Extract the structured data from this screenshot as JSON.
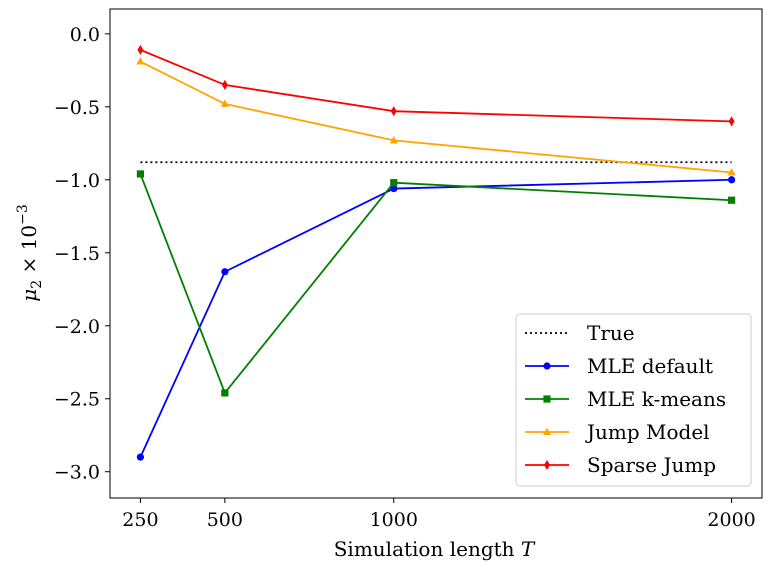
{
  "chart_data": {
    "type": "line",
    "title": "",
    "xlabel": "Simulation length",
    "xlabel_var": "T",
    "ylabel": "μ₂ × 10⁻³",
    "ylabel_parts": {
      "mu": "μ",
      "sub": "2",
      "times": " × 10",
      "exp": "−3"
    },
    "x": [
      250,
      500,
      1000,
      2000
    ],
    "x_ticks": [
      250,
      500,
      1000,
      2000
    ],
    "x_tick_labels": [
      "250",
      "500",
      "1000",
      "2000"
    ],
    "xlim": [
      160,
      2090
    ],
    "ylim": [
      -3.18,
      0.17
    ],
    "y_ticks": [
      0.0,
      -0.5,
      -1.0,
      -1.5,
      -2.0,
      -2.5,
      -3.0
    ],
    "y_tick_labels": [
      "0.0",
      "−0.5",
      "−1.0",
      "−1.5",
      "−2.0",
      "−2.5",
      "−3.0"
    ],
    "grid": false,
    "legend_position": "lower-right",
    "series": [
      {
        "name": "True",
        "values": [
          -0.88,
          -0.88,
          -0.88,
          -0.88
        ],
        "color": "#000000",
        "dash": "dotted",
        "marker": "none"
      },
      {
        "name": "MLE default",
        "values": [
          -2.9,
          -1.63,
          -1.06,
          -1.0
        ],
        "color": "#0000ff",
        "marker": "circle"
      },
      {
        "name": "MLE k-means",
        "values": [
          -0.96,
          -2.46,
          -1.02,
          -1.14
        ],
        "color": "#008000",
        "marker": "square"
      },
      {
        "name": "Jump Model",
        "values": [
          -0.19,
          -0.48,
          -0.73,
          -0.95
        ],
        "color": "#ffa500",
        "marker": "triangle"
      },
      {
        "name": "Sparse Jump",
        "values": [
          -0.11,
          -0.35,
          -0.53,
          -0.6
        ],
        "color": "#ff0000",
        "marker": "diamond"
      }
    ]
  }
}
